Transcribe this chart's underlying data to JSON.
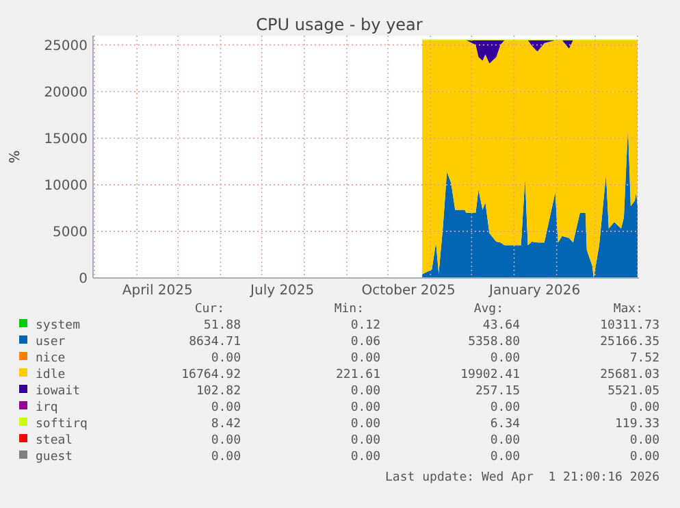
{
  "chart_data": {
    "type": "area",
    "stacked": true,
    "title": "CPU usage - by year",
    "ylabel": "%",
    "grid": true,
    "legend": "bottom",
    "xlim": [
      "2025-02-28",
      "2026-04-02"
    ],
    "ylim": [
      0,
      26000
    ],
    "yticks": [
      0,
      5000,
      10000,
      15000,
      20000,
      25000
    ],
    "xticks": [
      {
        "value": "2025-03-01",
        "label": null
      },
      {
        "value": "2025-04-01",
        "label": null
      },
      {
        "value": "2025-04-16",
        "label": "April 2025"
      },
      {
        "value": "2025-05-01",
        "label": null
      },
      {
        "value": "2025-06-01",
        "label": null
      },
      {
        "value": "2025-07-01",
        "label": null
      },
      {
        "value": "2025-07-16",
        "label": "July 2025"
      },
      {
        "value": "2025-08-01",
        "label": null
      },
      {
        "value": "2025-09-01",
        "label": null
      },
      {
        "value": "2025-10-01",
        "label": null
      },
      {
        "value": "2025-10-16",
        "label": "October 2025"
      },
      {
        "value": "2025-11-01",
        "label": null
      },
      {
        "value": "2025-12-01",
        "label": null
      },
      {
        "value": "2026-01-01",
        "label": null
      },
      {
        "value": "2026-01-16",
        "label": "January 2026"
      },
      {
        "value": "2026-02-01",
        "label": null
      },
      {
        "value": "2026-03-01",
        "label": null
      },
      {
        "value": "2026-04-01",
        "label": null
      }
    ],
    "x": [
      "2025-10-26",
      "2025-11-02",
      "2025-11-05",
      "2025-11-07",
      "2025-11-10",
      "2025-11-13",
      "2025-11-16",
      "2025-11-19",
      "2025-11-26",
      "2025-11-27",
      "2025-12-04",
      "2025-12-06",
      "2025-12-09",
      "2025-12-11",
      "2025-12-14",
      "2025-12-19",
      "2025-12-22",
      "2025-12-25",
      "2026-01-06",
      "2026-01-09",
      "2026-01-11",
      "2026-01-14",
      "2026-01-18",
      "2026-01-23",
      "2026-01-31",
      "2026-02-02",
      "2026-02-05",
      "2026-02-10",
      "2026-02-13",
      "2026-02-18",
      "2026-02-22",
      "2026-02-23",
      "2026-02-27",
      "2026-02-28",
      "2026-03-04",
      "2026-03-09",
      "2026-03-11",
      "2026-03-15",
      "2026-03-20",
      "2026-03-22",
      "2026-03-25",
      "2026-03-27",
      "2026-03-30",
      "2026-03-31",
      "2026-04-01"
    ],
    "series": [
      {
        "name": "system",
        "color": "#00cc00",
        "values": [
          null,
          null,
          null,
          null,
          null,
          null,
          null,
          null,
          null,
          null,
          null,
          null,
          null,
          null,
          null,
          null,
          null,
          null,
          null,
          null,
          null,
          null,
          null,
          null,
          null,
          null,
          null,
          null,
          null,
          null,
          null,
          null,
          null,
          null,
          null,
          null,
          null,
          null,
          null,
          null,
          null,
          null,
          null,
          null,
          null
        ]
      },
      {
        "name": "user",
        "color": "#0066b3",
        "values": [
          400,
          900,
          3800,
          500,
          5300,
          11400,
          10200,
          7300,
          7300,
          7000,
          7000,
          9500,
          7300,
          8100,
          4800,
          3900,
          3800,
          3500,
          3500,
          10700,
          3500,
          3900,
          3800,
          3800,
          9200,
          3800,
          4500,
          4300,
          3800,
          7000,
          7000,
          3000,
          1300,
          0,
          3500,
          11100,
          5300,
          6000,
          5300,
          6500,
          16200,
          7700,
          8300,
          9200,
          7700
        ]
      },
      {
        "name": "nice",
        "color": "#ff8000",
        "values": [
          null,
          null,
          null,
          null,
          null,
          null,
          null,
          null,
          null,
          null,
          null,
          null,
          null,
          null,
          null,
          null,
          null,
          null,
          null,
          null,
          null,
          null,
          null,
          null,
          null,
          null,
          null,
          null,
          null,
          null,
          null,
          null,
          null,
          null,
          null,
          null,
          null,
          null,
          null,
          null,
          null,
          null,
          null,
          null,
          null
        ]
      },
      {
        "name": "idle",
        "color": "#ffcc00",
        "values": [
          25100,
          24600,
          21700,
          25000,
          20200,
          14100,
          15300,
          18200,
          18200,
          18500,
          18000,
          14200,
          16000,
          15900,
          18200,
          19800,
          21200,
          22000,
          22000,
          14800,
          22000,
          21000,
          20500,
          21400,
          16300,
          21700,
          21000,
          20300,
          21700,
          18500,
          18500,
          22500,
          24200,
          25500,
          22000,
          14400,
          20200,
          19500,
          20200,
          19000,
          9300,
          17800,
          17200,
          16300,
          17800
        ]
      },
      {
        "name": "iowait",
        "color": "#330099",
        "values": [
          0,
          0,
          0,
          0,
          0,
          0,
          0,
          0,
          0,
          0,
          500,
          1800,
          2200,
          1500,
          2500,
          1800,
          500,
          0,
          0,
          0,
          0,
          600,
          1200,
          300,
          0,
          0,
          0,
          900,
          0,
          0,
          0,
          0,
          0,
          0,
          0,
          0,
          0,
          0,
          0,
          0,
          0,
          0,
          0,
          0,
          0
        ]
      },
      {
        "name": "irq",
        "color": "#990099",
        "values": [
          null,
          null,
          null,
          null,
          null,
          null,
          null,
          null,
          null,
          null,
          null,
          null,
          null,
          null,
          null,
          null,
          null,
          null,
          null,
          null,
          null,
          null,
          null,
          null,
          null,
          null,
          null,
          null,
          null,
          null,
          null,
          null,
          null,
          null,
          null,
          null,
          null,
          null,
          null,
          null,
          null,
          null,
          null,
          null,
          null
        ]
      },
      {
        "name": "softirq",
        "color": "#ccff00",
        "values": [
          100,
          100,
          100,
          100,
          100,
          100,
          100,
          100,
          100,
          100,
          100,
          100,
          100,
          100,
          100,
          100,
          100,
          100,
          100,
          100,
          100,
          100,
          100,
          100,
          100,
          100,
          100,
          100,
          100,
          100,
          100,
          100,
          100,
          100,
          100,
          100,
          100,
          100,
          100,
          100,
          100,
          100,
          100,
          100,
          100
        ]
      },
      {
        "name": "steal",
        "color": "#ff0000",
        "values": [
          null,
          null,
          null,
          null,
          null,
          null,
          null,
          null,
          null,
          null,
          null,
          null,
          null,
          null,
          null,
          null,
          null,
          null,
          null,
          null,
          null,
          null,
          null,
          null,
          null,
          null,
          null,
          null,
          null,
          null,
          null,
          null,
          null,
          null,
          null,
          null,
          null,
          null,
          null,
          null,
          null,
          null,
          null,
          null,
          null
        ]
      },
      {
        "name": "guest",
        "color": "#808080",
        "values": [
          null,
          null,
          null,
          null,
          null,
          null,
          null,
          null,
          null,
          null,
          null,
          null,
          null,
          null,
          null,
          null,
          null,
          null,
          null,
          null,
          null,
          null,
          null,
          null,
          null,
          null,
          null,
          null,
          null,
          null,
          null,
          null,
          null,
          null,
          null,
          null,
          null,
          null,
          null,
          null,
          null,
          null,
          null,
          null,
          null
        ]
      }
    ],
    "annotations": [
      "Cur:",
      "Min:",
      "Avg:",
      "Max:",
      "51.88",
      "0.12",
      "43.64",
      "10311.73",
      "8634.71",
      "0.06",
      "5358.80",
      "25166.35",
      "0.00",
      "0.00",
      "0.00",
      "7.52",
      "16764.92",
      "221.61",
      "19902.41",
      "25681.03",
      "102.82",
      "0.00",
      "257.15",
      "5521.05",
      "0.00",
      "0.00",
      "0.00",
      "0.00",
      "8.42",
      "0.00",
      "6.34",
      "119.33",
      "0.00",
      "0.00",
      "0.00",
      "0.00",
      "0.00",
      "0.00",
      "0.00",
      "0.00",
      "Last update: Wed Apr  1 21:00:16 2026"
    ]
  }
}
